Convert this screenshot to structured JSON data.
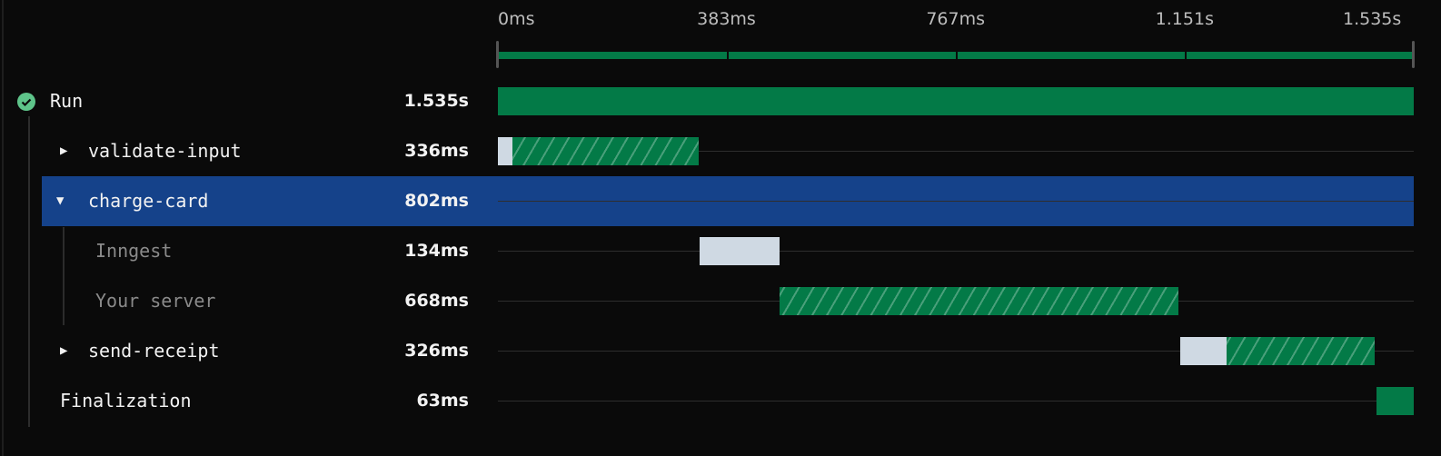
{
  "timeline": {
    "total_ms": 1535,
    "ticks": [
      {
        "label": "0ms",
        "ms": 0
      },
      {
        "label": "383ms",
        "ms": 383
      },
      {
        "label": "767ms",
        "ms": 767
      },
      {
        "label": "1.151s",
        "ms": 1151
      },
      {
        "label": "1.535s",
        "ms": 1535
      }
    ]
  },
  "colors": {
    "success": "#037a47",
    "queued": "#cfd9e3",
    "selected": "#15428a",
    "status_icon": "#5ec48a"
  },
  "rows": [
    {
      "name": "Run",
      "duration": "1.535s",
      "kind": "run",
      "status_icon": "check-circle-icon",
      "segments": [
        {
          "type": "solid",
          "start": 0,
          "end": 1535
        }
      ]
    },
    {
      "name": "validate-input",
      "duration": "336ms",
      "kind": "step",
      "expanded": false,
      "segments": [
        {
          "type": "queued",
          "start": 0,
          "end": 24
        },
        {
          "type": "hatched",
          "start": 24,
          "end": 336
        }
      ]
    },
    {
      "name": "charge-card",
      "duration": "802ms",
      "kind": "step",
      "expanded": true,
      "selected": true,
      "segments": []
    },
    {
      "name": "Inngest",
      "duration": "134ms",
      "kind": "sub",
      "segments": [
        {
          "type": "queued",
          "start": 338,
          "end": 472
        }
      ]
    },
    {
      "name": "Your server",
      "duration": "668ms",
      "kind": "sub",
      "segments": [
        {
          "type": "hatched",
          "start": 472,
          "end": 1140
        }
      ]
    },
    {
      "name": "send-receipt",
      "duration": "326ms",
      "kind": "step",
      "expanded": false,
      "segments": [
        {
          "type": "queued",
          "start": 1143,
          "end": 1222
        },
        {
          "type": "hatched",
          "start": 1222,
          "end": 1469
        }
      ]
    },
    {
      "name": "Finalization",
      "duration": "63ms",
      "kind": "final",
      "segments": [
        {
          "type": "solid",
          "start": 1472,
          "end": 1535
        }
      ]
    }
  ]
}
